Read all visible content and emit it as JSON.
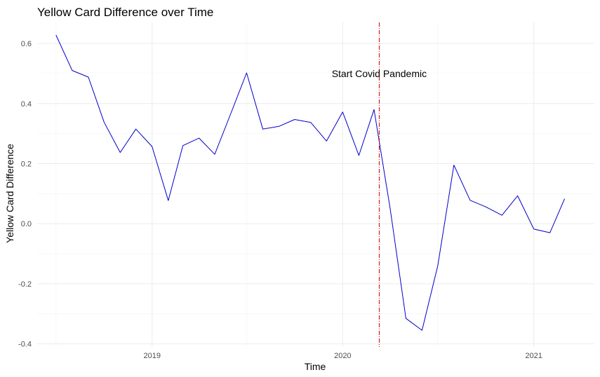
{
  "chart_data": {
    "type": "line",
    "title": "Yellow Card Difference over Time",
    "xlabel": "Time",
    "ylabel": "Yellow Card Difference",
    "x_ticks": [
      "2019",
      "2020",
      "2021"
    ],
    "y_ticks": [
      -0.4,
      -0.2,
      0.0,
      0.2,
      0.4,
      0.6
    ],
    "y_tick_labels": [
      "-0.4",
      "-0.2",
      "0.0",
      "0.2",
      "0.4",
      "0.6"
    ],
    "ylim": [
      -0.41,
      0.67
    ],
    "xlim": [
      "2018-05-26",
      "2021-04-27"
    ],
    "grid": true,
    "series": [
      {
        "color": "#0000cc",
        "x": [
          "2018-07-01",
          "2018-08-01",
          "2018-09-01",
          "2018-10-01",
          "2018-11-01",
          "2018-12-01",
          "2019-01-01",
          "2019-02-01",
          "2019-03-01",
          "2019-04-01",
          "2019-05-01",
          "2019-06-01",
          "2019-07-01",
          "2019-08-01",
          "2019-09-01",
          "2019-10-01",
          "2019-11-01",
          "2019-12-01",
          "2020-01-01",
          "2020-02-01",
          "2020-03-01",
          "2020-04-01",
          "2020-05-01",
          "2020-06-01",
          "2020-07-01",
          "2020-08-01",
          "2020-09-01",
          "2020-10-01",
          "2020-11-01",
          "2020-12-01",
          "2021-01-01",
          "2021-02-01",
          "2021-03-01"
        ],
        "y": [
          0.628,
          0.51,
          0.488,
          0.338,
          0.237,
          0.315,
          0.257,
          0.077,
          0.26,
          0.285,
          0.231,
          0.368,
          0.502,
          0.315,
          0.324,
          0.347,
          0.337,
          0.275,
          0.372,
          0.227,
          0.38,
          0.05,
          -0.315,
          -0.355,
          -0.14,
          0.195,
          0.078,
          0.056,
          0.028,
          0.093,
          -0.018,
          -0.03,
          0.083
        ]
      }
    ],
    "vline": {
      "x": "2020-03-11",
      "color": "#cc0000",
      "style": "dashdot"
    },
    "annotation": {
      "text": "Start Covid Pandemic",
      "x": "2020-03-11",
      "y": 0.5
    }
  }
}
